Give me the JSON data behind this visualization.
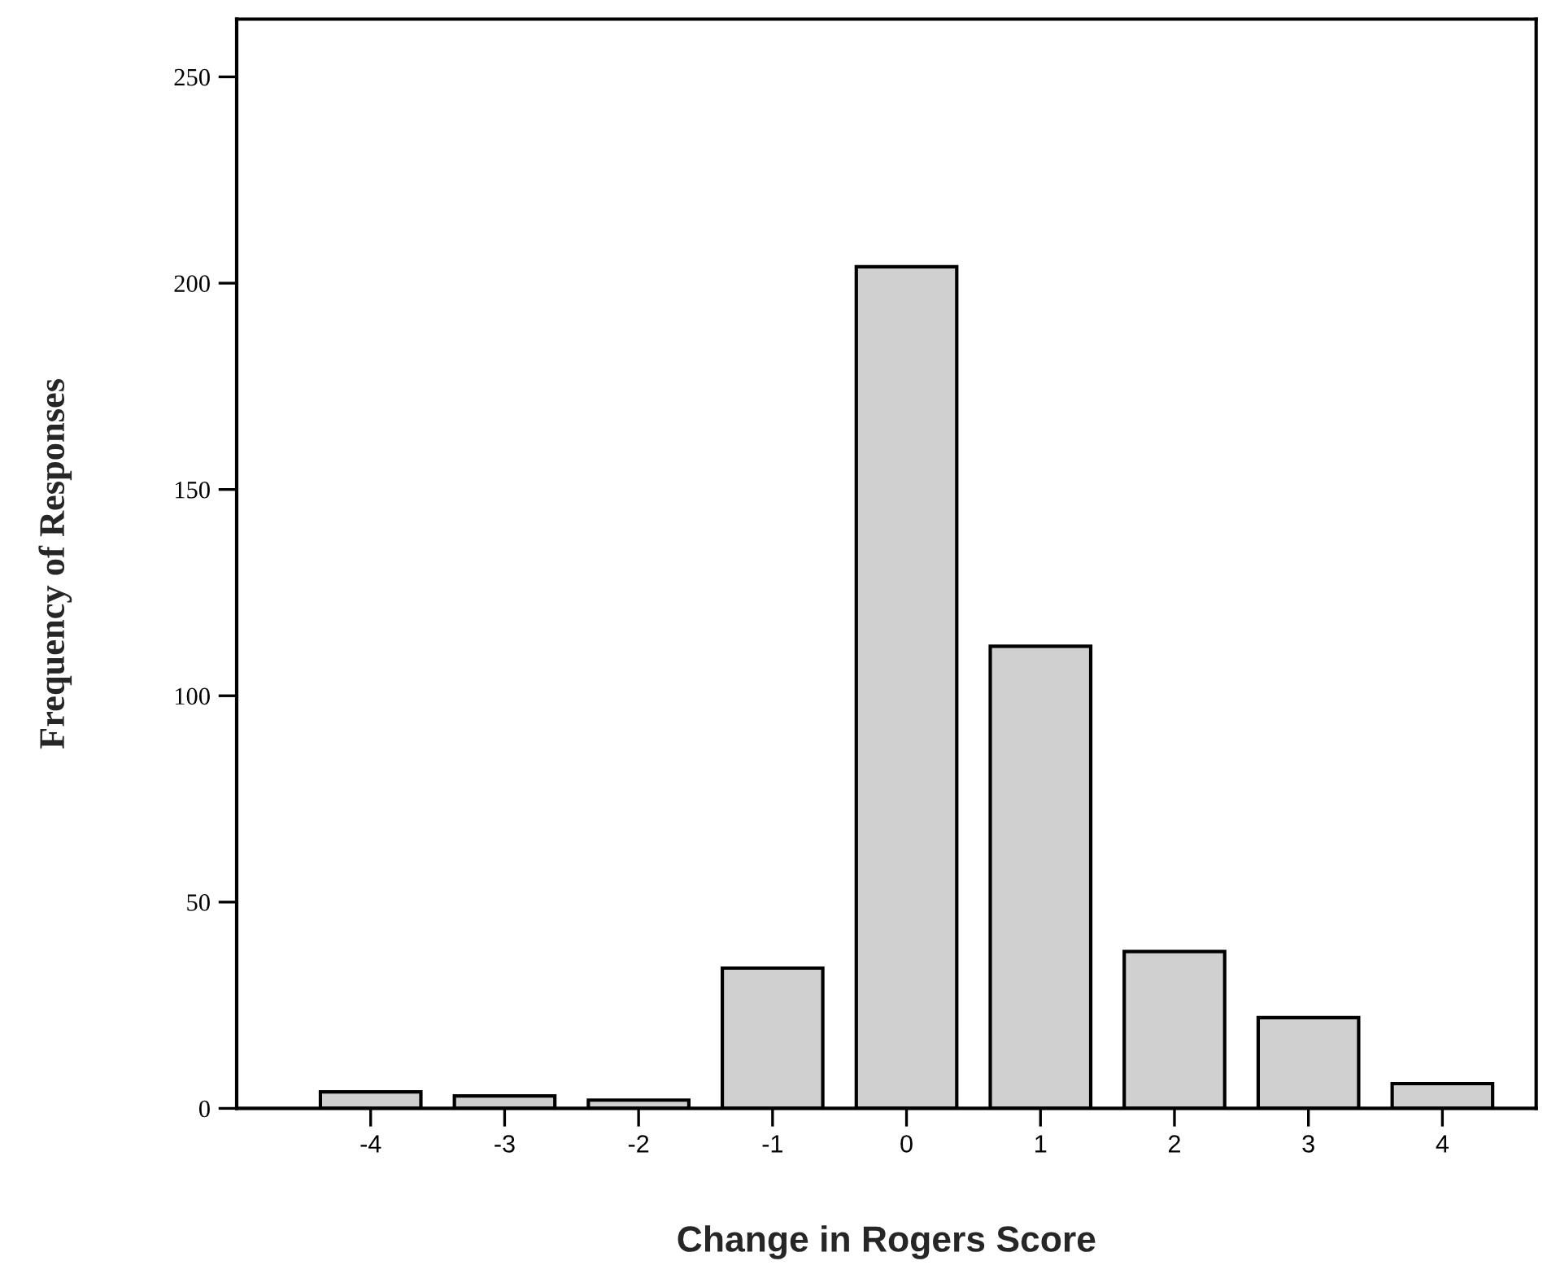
{
  "chart_data": {
    "type": "bar",
    "xlabel": "Change in Rogers Score",
    "ylabel": "Frequency of Responses",
    "categories": [
      "-4",
      "-3",
      "-2",
      "-1",
      "0",
      "1",
      "2",
      "3",
      "4"
    ],
    "values": [
      4,
      3,
      2,
      34,
      204,
      112,
      38,
      22,
      6
    ],
    "color": "#d0d0d0",
    "ylim": [
      0,
      264
    ],
    "yticks": [
      0,
      50,
      100,
      150,
      200,
      250
    ],
    "grid": false,
    "legend": false
  }
}
